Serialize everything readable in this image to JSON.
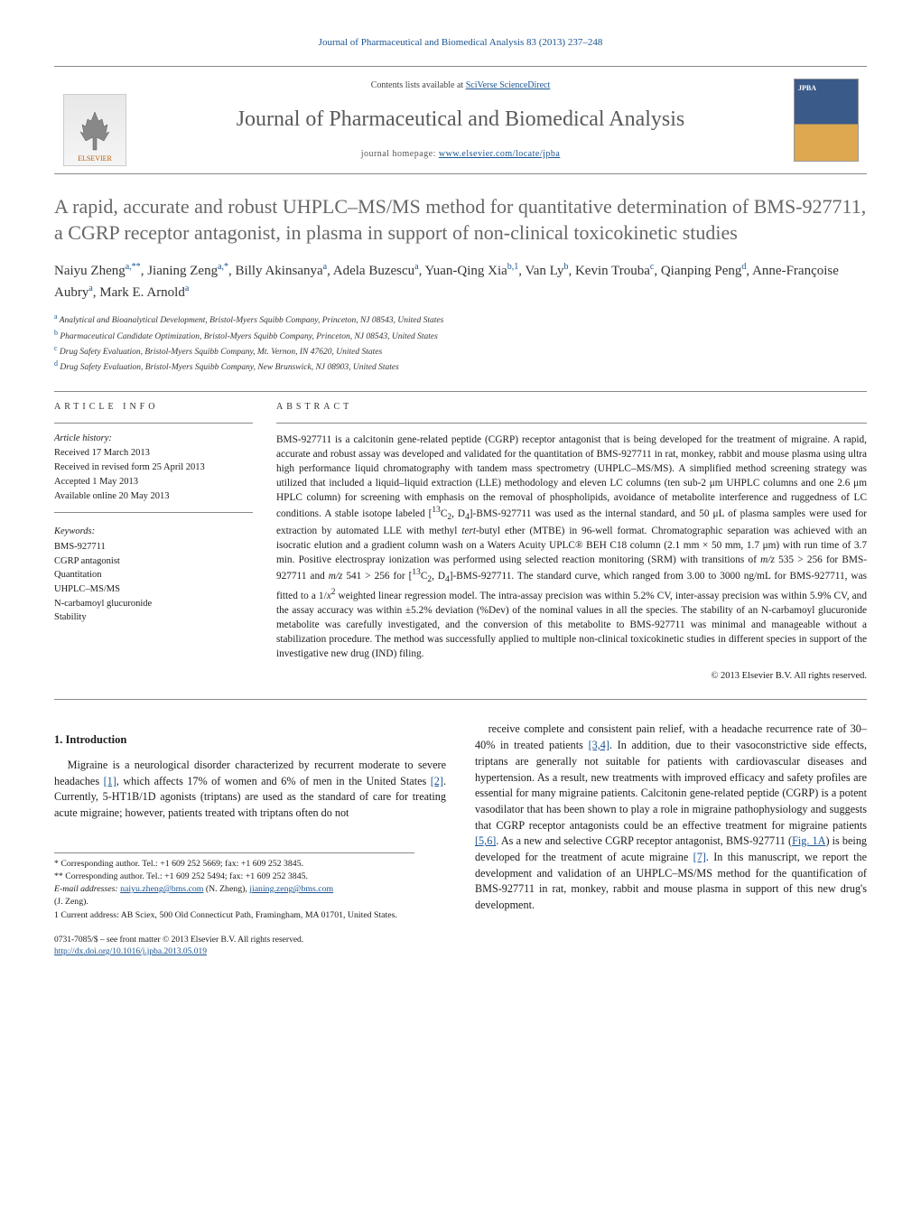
{
  "header": {
    "journal_cite": "Journal of Pharmaceutical and Biomedical Analysis 83 (2013) 237–248",
    "contents_prefix": "Contents lists available at ",
    "contents_link": "SciVerse ScienceDirect",
    "journal_title": "Journal of Pharmaceutical and Biomedical Analysis",
    "homepage_prefix": "journal homepage: ",
    "homepage_url": "www.elsevier.com/locate/jpba",
    "publisher_label": "ELSEVIER",
    "cover_label": "JPBA"
  },
  "article": {
    "title": "A rapid, accurate and robust UHPLC–MS/MS method for quantitative determination of BMS-927711, a CGRP receptor antagonist, in plasma in support of non-clinical toxicokinetic studies",
    "authors_html": "Naiyu Zheng<sup>a,**</sup>, Jianing Zeng<sup>a,*</sup>, Billy Akinsanya<sup>a</sup>, Adela Buzescu<sup>a</sup>, Yuan-Qing Xia<sup>b,1</sup>, Van Ly<sup>b</sup>, Kevin Trouba<sup>c</sup>, Qianping Peng<sup>d</sup>, Anne-Françoise Aubry<sup>a</sup>, Mark E. Arnold<sup>a</sup>",
    "affiliations": [
      {
        "sup": "a",
        "text": "Analytical and Bioanalytical Development, Bristol-Myers Squibb Company, Princeton, NJ 08543, United States"
      },
      {
        "sup": "b",
        "text": "Pharmaceutical Candidate Optimization, Bristol-Myers Squibb Company, Princeton, NJ 08543, United States"
      },
      {
        "sup": "c",
        "text": "Drug Safety Evaluation, Bristol-Myers Squibb Company, Mt. Vernon, IN 47620, United States"
      },
      {
        "sup": "d",
        "text": "Drug Safety Evaluation, Bristol-Myers Squibb Company, New Brunswick, NJ 08903, United States"
      }
    ]
  },
  "info": {
    "heading": "ARTICLE INFO",
    "history_label": "Article history:",
    "history": [
      "Received 17 March 2013",
      "Received in revised form 25 April 2013",
      "Accepted 1 May 2013",
      "Available online 20 May 2013"
    ],
    "keywords_label": "Keywords:",
    "keywords": [
      "BMS-927711",
      "CGRP antagonist",
      "Quantitation",
      "UHPLC–MS/MS",
      "N-carbamoyl glucuronide",
      "Stability"
    ]
  },
  "abstract": {
    "heading": "ABSTRACT",
    "text": "BMS-927711 is a calcitonin gene-related peptide (CGRP) receptor antagonist that is being developed for the treatment of migraine. A rapid, accurate and robust assay was developed and validated for the quantitation of BMS-927711 in rat, monkey, rabbit and mouse plasma using ultra high performance liquid chromatography with tandem mass spectrometry (UHPLC–MS/MS). A simplified method screening strategy was utilized that included a liquid–liquid extraction (LLE) methodology and eleven LC columns (ten sub-2 μm UHPLC columns and one 2.6 μm HPLC column) for screening with emphasis on the removal of phospholipids, avoidance of metabolite interference and ruggedness of LC conditions. A stable isotope labeled [13C2, D4]-BMS-927711 was used as the internal standard, and 50 μL of plasma samples were used for extraction by automated LLE with methyl tert-butyl ether (MTBE) in 96-well format. Chromatographic separation was achieved with an isocratic elution and a gradient column wash on a Waters Acuity UPLC® BEH C18 column (2.1 mm × 50 mm, 1.7 μm) with run time of 3.7 min. Positive electrospray ionization was performed using selected reaction monitoring (SRM) with transitions of m/z 535 > 256 for BMS-927711 and m/z 541 > 256 for [13C2, D4]-BMS-927711. The standard curve, which ranged from 3.00 to 3000 ng/mL for BMS-927711, was fitted to a 1/x2 weighted linear regression model. The intra-assay precision was within 5.2% CV, inter-assay precision was within 5.9% CV, and the assay accuracy was within ±5.2% deviation (%Dev) of the nominal values in all the species. The stability of an N-carbamoyl glucuronide metabolite was carefully investigated, and the conversion of this metabolite to BMS-927711 was minimal and manageable without a stabilization procedure. The method was successfully applied to multiple non-clinical toxicokinetic studies in different species in support of the investigative new drug (IND) filing.",
    "copyright": "© 2013 Elsevier B.V. All rights reserved."
  },
  "intro": {
    "heading": "1. Introduction",
    "left": "Migraine is a neurological disorder characterized by recurrent moderate to severe headaches [1], which affects 17% of women and 6% of men in the United States [2]. Currently, 5-HT1B/1D agonists (triptans) are used as the standard of care for treating acute migraine; however, patients treated with triptans often do not",
    "right": "receive complete and consistent pain relief, with a headache recurrence rate of 30–40% in treated patients [3,4]. In addition, due to their vasoconstrictive side effects, triptans are generally not suitable for patients with cardiovascular diseases and hypertension. As a result, new treatments with improved efficacy and safety profiles are essential for many migraine patients. Calcitonin gene-related peptide (CGRP) is a potent vasodilator that has been shown to play a role in migraine pathophysiology and suggests that CGRP receptor antagonists could be an effective treatment for migraine patients [5,6]. As a new and selective CGRP receptor antagonist, BMS-927711 (Fig. 1A) is being developed for the treatment of acute migraine [7]. In this manuscript, we report the development and validation of an UHPLC–MS/MS method for the quantification of BMS-927711 in rat, monkey, rabbit and mouse plasma in support of this new drug's development."
  },
  "footnotes": {
    "corr1": "* Corresponding author. Tel.: +1 609 252 5669; fax: +1 609 252 3845.",
    "corr2": "** Corresponding author. Tel.: +1 609 252 5494; fax: +1 609 252 3845.",
    "email_label": "E-mail addresses: ",
    "email1": "naiyu.zheng@bms.com",
    "email1_name": " (N. Zheng), ",
    "email2": "jianing.zeng@bms.com",
    "email2_name": "(J. Zeng).",
    "note1": "1 Current address: AB Sciex, 500 Old Connecticut Path, Framingham, MA 01701, United States."
  },
  "footer": {
    "issn": "0731-7085/$ – see front matter © 2013 Elsevier B.V. All rights reserved.",
    "doi_url": "http://dx.doi.org/10.1016/j.jpba.2013.05.019"
  },
  "colors": {
    "link": "#1a5490",
    "title_gray": "#676767",
    "rule": "#888888"
  }
}
